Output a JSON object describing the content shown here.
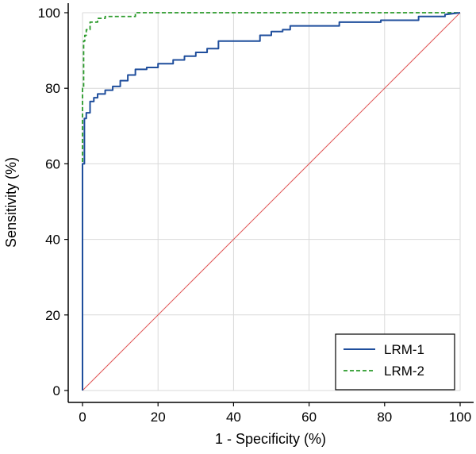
{
  "chart_data": {
    "type": "line",
    "xlabel": "1 - Specificity (%)",
    "ylabel": "Sensitivity (%)",
    "xlim": [
      0,
      100
    ],
    "ylim": [
      0,
      100
    ],
    "x_ticks": [
      0,
      20,
      40,
      60,
      80,
      100
    ],
    "y_ticks": [
      0,
      20,
      40,
      60,
      80,
      100
    ],
    "grid": true,
    "legend_position": "bottom-right",
    "series": [
      {
        "name": "LRM-1",
        "color": "#1f4e9c",
        "style": "solid",
        "x": [
          0,
          0,
          0.5,
          0.5,
          1,
          1,
          2,
          2,
          3,
          3,
          4,
          4,
          6,
          6,
          8,
          8,
          10,
          10,
          12,
          12,
          14,
          14,
          17,
          17,
          20,
          20,
          24,
          24,
          27,
          27,
          30,
          30,
          33,
          33,
          36,
          36,
          47,
          47,
          50,
          50,
          53,
          53,
          55,
          55,
          68,
          68,
          79,
          79,
          89,
          89,
          96,
          96,
          100
        ],
        "y": [
          0,
          60,
          60,
          72,
          72,
          73.5,
          73.5,
          76.5,
          76.5,
          77.5,
          77.5,
          78.5,
          78.5,
          79.5,
          79.5,
          80.5,
          80.5,
          82,
          82,
          83.5,
          83.5,
          85,
          85,
          85.5,
          85.5,
          86.5,
          86.5,
          87.5,
          87.5,
          88.5,
          88.5,
          89.5,
          89.5,
          90.5,
          90.5,
          92.5,
          92.5,
          94,
          94,
          95,
          95,
          95.5,
          95.5,
          96.5,
          96.5,
          97.5,
          97.5,
          98,
          98,
          99,
          99,
          99.5,
          100
        ]
      },
      {
        "name": "LRM-2",
        "color": "#2a9a2a",
        "style": "dashed",
        "x": [
          0,
          0,
          0.3,
          0.3,
          0.6,
          0.6,
          1,
          1,
          2,
          2,
          4,
          4,
          6,
          6,
          14,
          14,
          100
        ],
        "y": [
          0,
          80,
          80,
          92.5,
          92.5,
          94,
          94,
          95.5,
          95.5,
          97.5,
          97.5,
          98.5,
          98.5,
          99,
          99,
          100,
          100
        ]
      },
      {
        "name": "",
        "color": "#e05555",
        "style": "reference",
        "x": [
          0,
          100
        ],
        "y": [
          0,
          100
        ]
      }
    ]
  }
}
